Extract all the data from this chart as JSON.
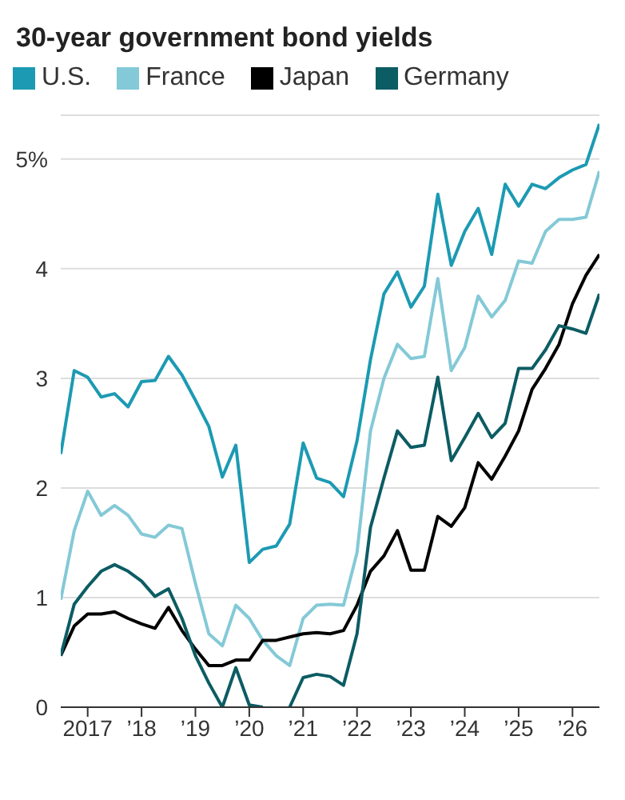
{
  "chart_data": {
    "type": "line",
    "title": "30-year government bond yields",
    "x": [
      2016.5,
      2016.75,
      2017,
      2017.25,
      2017.5,
      2017.75,
      2018,
      2018.25,
      2018.5,
      2018.75,
      2019,
      2019.25,
      2019.5,
      2019.75,
      2020,
      2020.25,
      2020.5,
      2020.75,
      2021,
      2021.25,
      2021.5,
      2021.75,
      2022,
      2022.25,
      2022.5,
      2022.75,
      2023,
      2023.25,
      2023.5,
      2023.75,
      2024,
      2024.25,
      2024.5,
      2024.75,
      2025,
      2025.25,
      2025.5,
      2025.75,
      2026,
      2026.25,
      2026.5
    ],
    "series": [
      {
        "name": "U.S.",
        "color": "#1c9ab3",
        "values": [
          2.31,
          3.07,
          3.01,
          2.83,
          2.86,
          2.74,
          2.97,
          2.98,
          3.2,
          3.03,
          2.8,
          2.56,
          2.1,
          2.39,
          1.32,
          1.44,
          1.47,
          1.67,
          2.41,
          2.09,
          2.05,
          1.92,
          2.43,
          3.17,
          3.77,
          3.97,
          3.65,
          3.84,
          4.68,
          4.03,
          4.34,
          4.55,
          4.13,
          4.77,
          4.57,
          4.77,
          4.73,
          4.83,
          4.9,
          4.95,
          5.32
        ]
      },
      {
        "name": "France",
        "color": "#84c9d7",
        "values": [
          0.98,
          1.61,
          1.97,
          1.75,
          1.84,
          1.75,
          1.58,
          1.55,
          1.66,
          1.63,
          1.13,
          0.67,
          0.56,
          0.93,
          0.81,
          0.61,
          0.47,
          0.38,
          0.81,
          0.93,
          0.94,
          0.93,
          1.41,
          2.52,
          3.0,
          3.31,
          3.18,
          3.2,
          3.91,
          3.07,
          3.28,
          3.75,
          3.56,
          3.71,
          4.07,
          4.05,
          4.34,
          4.45,
          4.45,
          4.47,
          4.89
        ]
      },
      {
        "name": "Japan",
        "color": "#000000",
        "values": [
          0.47,
          0.74,
          0.85,
          0.85,
          0.87,
          0.81,
          0.76,
          0.72,
          0.91,
          0.7,
          0.53,
          0.38,
          0.38,
          0.43,
          0.43,
          0.61,
          0.61,
          0.64,
          0.67,
          0.68,
          0.67,
          0.7,
          0.93,
          1.24,
          1.38,
          1.61,
          1.25,
          1.25,
          1.74,
          1.65,
          1.82,
          2.23,
          2.08,
          2.29,
          2.52,
          2.9,
          3.09,
          3.31,
          3.68,
          3.94,
          4.13
        ]
      },
      {
        "name": "Germany",
        "color": "#0c5c63",
        "values": [
          0.47,
          0.94,
          1.1,
          1.24,
          1.3,
          1.24,
          1.15,
          1.01,
          1.08,
          0.81,
          0.47,
          0.22,
          0,
          0.36,
          0.02,
          0,
          null,
          0,
          0.27,
          0.3,
          0.28,
          0.2,
          0.67,
          1.64,
          2.09,
          2.52,
          2.37,
          2.39,
          3.01,
          2.25,
          2.46,
          2.68,
          2.46,
          2.59,
          3.09,
          3.09,
          3.26,
          3.48,
          3.45,
          3.41,
          3.77
        ]
      }
    ],
    "xlim": [
      2016.5,
      2026.5
    ],
    "xticks": [
      {
        "value": 2017,
        "label": "2017"
      },
      {
        "value": 2018,
        "label": "’18"
      },
      {
        "value": 2019,
        "label": "’19"
      },
      {
        "value": 2020,
        "label": "’20"
      },
      {
        "value": 2021,
        "label": "’21"
      },
      {
        "value": 2022,
        "label": "’22"
      },
      {
        "value": 2023,
        "label": "’23"
      },
      {
        "value": 2024,
        "label": "’24"
      },
      {
        "value": 2025,
        "label": "’25"
      },
      {
        "value": 2026,
        "label": "’26"
      }
    ],
    "ylim": [
      0,
      5.4
    ],
    "yticks": [
      0,
      1,
      2,
      3,
      4,
      {
        "value": 5,
        "label": "5%"
      }
    ],
    "grid": "y",
    "legend": "top left",
    "marker": "none",
    "line_style": "solid"
  }
}
